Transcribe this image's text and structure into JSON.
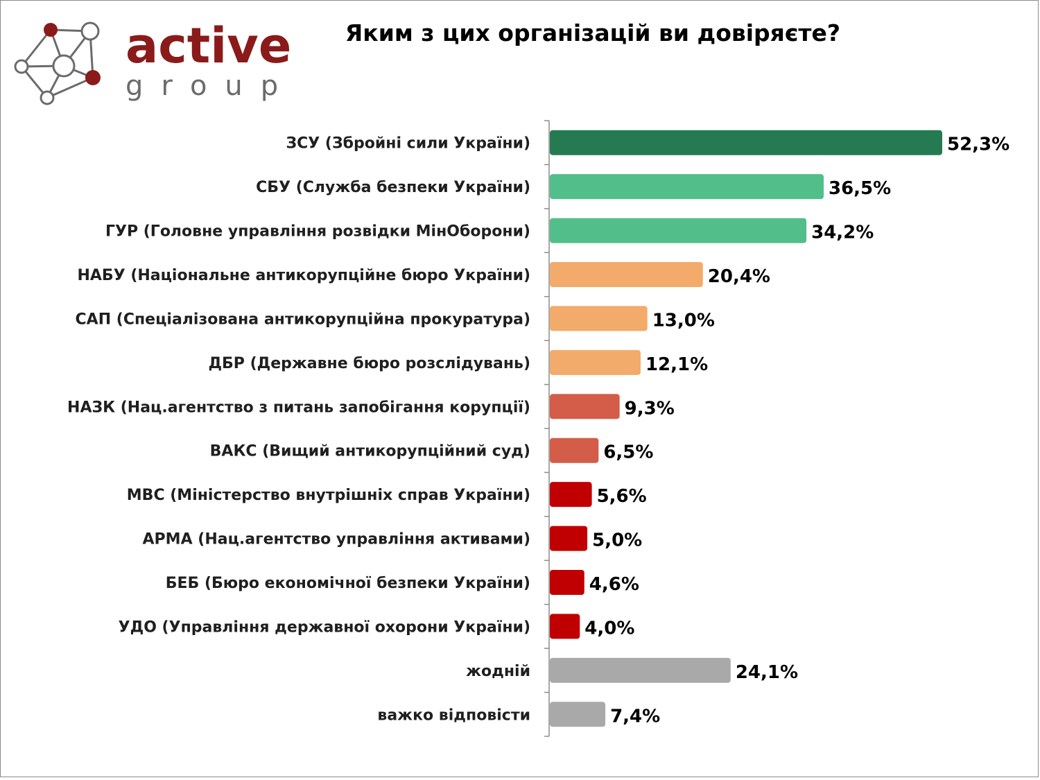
{
  "logo": {
    "word_top": "active",
    "word_bottom": "group",
    "color_brand": "#8b1a1a",
    "color_node": "#6b6b6b"
  },
  "chart_data": {
    "type": "bar",
    "orientation": "horizontal",
    "title": "Яким з цих організацій ви довіряєте?",
    "categories": [
      "ЗСУ (Збройні сили України)",
      "СБУ (Служба безпеки України)",
      "ГУР (Головне управління розвідки МінОборони)",
      "НАБУ (Національне антикорупційне бюро України)",
      "САП (Спеціалізована антикорупційна прокуратура)",
      "ДБР (Державне бюро розслідувань)",
      "НАЗК (Нац.агентство з питань запобігання корупції)",
      "ВАКС (Вищий антикорупційний суд)",
      "МВС (Міністерство внутрішніх справ України)",
      "АРМА (Нац.агентство управління активами)",
      "БЕБ (Бюро економічної безпеки України)",
      "УДО (Управління державної охорони України)",
      "жодній",
      "важко відповісти"
    ],
    "values": [
      52.3,
      36.5,
      34.2,
      20.4,
      13.0,
      12.1,
      9.3,
      6.5,
      5.6,
      5.0,
      4.6,
      4.0,
      24.1,
      7.4
    ],
    "value_labels": [
      "52,3%",
      "36,5%",
      "34,2%",
      "20,4%",
      "13,0%",
      "12,1%",
      "9,3%",
      "6,5%",
      "5,6%",
      "5,0%",
      "4,6%",
      "4,0%",
      "24,1%",
      "7,4%"
    ],
    "colors": [
      "#267a52",
      "#52be8a",
      "#52be8a",
      "#f2ab6a",
      "#f2ab6a",
      "#f2ab6a",
      "#d35d48",
      "#d35d48",
      "#c00000",
      "#c00000",
      "#c00000",
      "#c00000",
      "#a9a9a9",
      "#a9a9a9"
    ],
    "xlim": [
      0,
      60
    ],
    "grid": false,
    "legend": "none"
  }
}
